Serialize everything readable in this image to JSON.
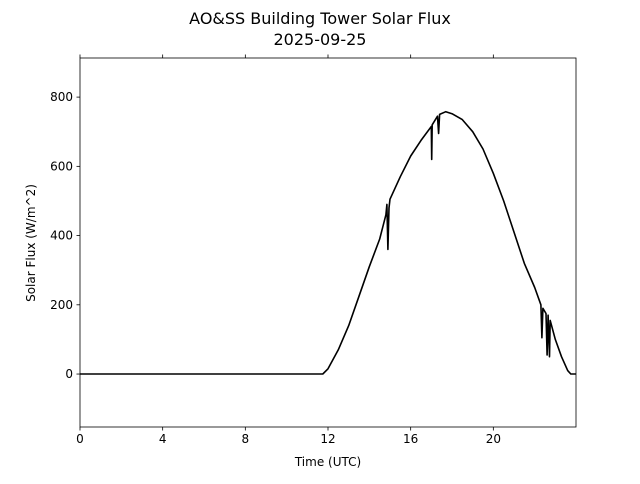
{
  "chart_data": {
    "type": "line",
    "title": "AO&SS Building Tower Solar Flux",
    "subtitle": "2025-09-25",
    "xlabel": "Time (UTC)",
    "ylabel": "Solar Flux (W/m^2)",
    "xlim": [
      0,
      24
    ],
    "ylim": [
      -153,
      913
    ],
    "xticks": [
      0,
      4,
      8,
      12,
      16,
      20
    ],
    "yticks": [
      0,
      200,
      400,
      600,
      800
    ],
    "grid": false,
    "line_color": "#000000",
    "series": [
      {
        "name": "Solar Flux",
        "x": [
          0,
          11.75,
          12,
          12.5,
          13,
          13.5,
          14,
          14.5,
          14.8,
          14.85,
          14.9,
          14.95,
          15.0,
          15.5,
          16,
          16.5,
          17,
          17.02,
          17.04,
          17.3,
          17.35,
          17.4,
          17.7,
          18,
          18.5,
          19,
          19.5,
          20,
          20.5,
          21,
          21.5,
          22,
          22.3,
          22.35,
          22.4,
          22.55,
          22.6,
          22.65,
          22.72,
          22.75,
          23,
          23.3,
          23.6,
          23.75,
          24
        ],
        "y": [
          0,
          0,
          15,
          70,
          140,
          225,
          310,
          390,
          460,
          490,
          360,
          480,
          505,
          570,
          630,
          675,
          715,
          620,
          720,
          745,
          695,
          750,
          758,
          752,
          735,
          700,
          650,
          580,
          500,
          410,
          320,
          250,
          200,
          105,
          190,
          175,
          55,
          170,
          50,
          155,
          100,
          50,
          10,
          0,
          0
        ]
      }
    ]
  }
}
